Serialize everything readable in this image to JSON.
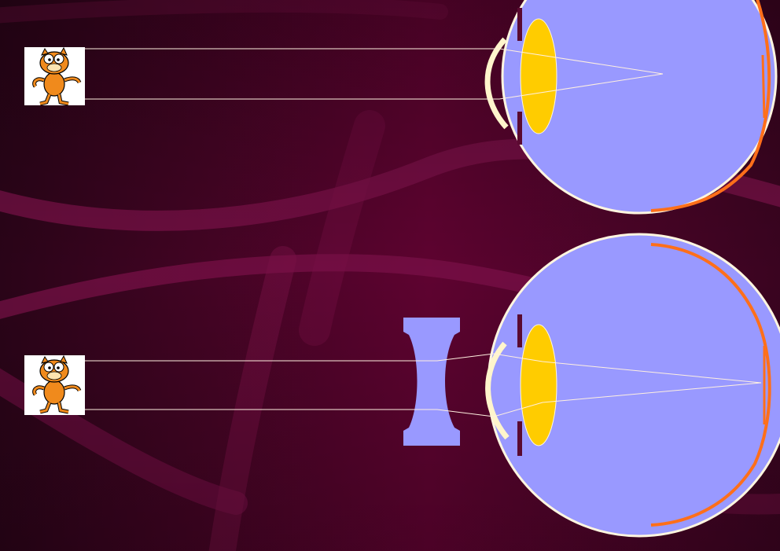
{
  "slide": {
    "theme_colors": {
      "background_dark": "#2a0418",
      "background_mid": "#5e0330",
      "swoosh": "#7a1148",
      "eyeball": "#9999ff",
      "eyeball_outline": "#fff6e0",
      "lens": "#ffcc00",
      "cornea": "#fff5cc",
      "retina": "#ff6f1a",
      "iris": "#5a0a30",
      "light_ray": "#fff0e0",
      "corrective_lens": "#9999ff"
    },
    "panels": [
      {
        "id": "uncorrected",
        "object_icon": "garfield-cartoon-icon",
        "focus": "in-front-of-retina"
      },
      {
        "id": "corrected",
        "object_icon": "garfield-cartoon-icon",
        "corrective_lens": "concave-diverging-lens",
        "focus": "on-retina"
      }
    ]
  }
}
